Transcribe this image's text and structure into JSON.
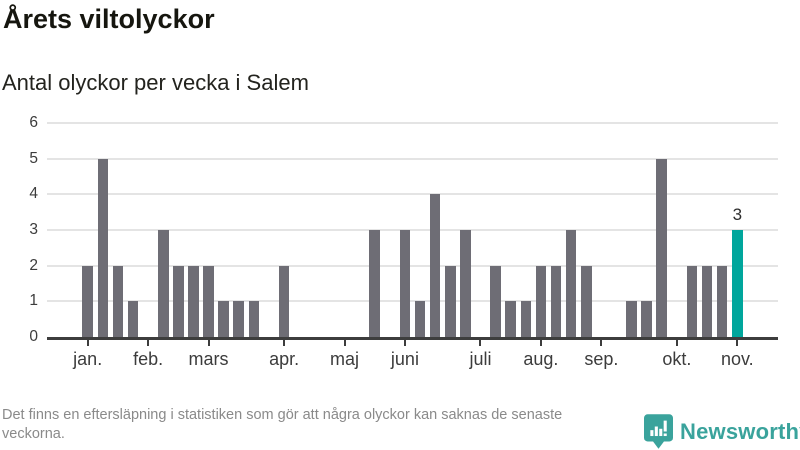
{
  "header": {
    "title": "Årets viltolyckor",
    "subtitle": "Antal olyckor per vecka i Salem"
  },
  "chart_data": {
    "type": "bar",
    "title": "Årets viltolyckor",
    "subtitle": "Antal olyckor per vecka i Salem",
    "x_unit": "vecka",
    "values": [
      2,
      5,
      2,
      1,
      0,
      3,
      2,
      2,
      2,
      1,
      1,
      1,
      0,
      2,
      0,
      0,
      0,
      0,
      0,
      3,
      0,
      3,
      1,
      4,
      2,
      3,
      0,
      2,
      1,
      1,
      2,
      2,
      3,
      2,
      0,
      0,
      1,
      1,
      5,
      0,
      2,
      2,
      2,
      3
    ],
    "highlight_index": 43,
    "highlight_value_label": "3",
    "ylim": [
      0,
      6
    ],
    "yticks": [
      0,
      1,
      2,
      3,
      4,
      5,
      6
    ],
    "month_ticks": [
      {
        "week": 0,
        "label": "jan."
      },
      {
        "week": 4,
        "label": "feb."
      },
      {
        "week": 8,
        "label": "mars"
      },
      {
        "week": 13,
        "label": "apr."
      },
      {
        "week": 17,
        "label": "maj"
      },
      {
        "week": 21,
        "label": "juni"
      },
      {
        "week": 26,
        "label": "juli"
      },
      {
        "week": 30,
        "label": "aug."
      },
      {
        "week": 34,
        "label": "sep."
      },
      {
        "week": 39,
        "label": "okt."
      },
      {
        "week": 43,
        "label": "nov."
      }
    ],
    "grid": true,
    "legend_position": "none",
    "colors": {
      "bar": "#6e6d75",
      "highlight": "#00a69c",
      "grid": "#e4e4e4",
      "axis": "#3d3d3d",
      "tick_label": "#3c3c3c"
    }
  },
  "footer": {
    "note": "Det finns en eftersläpning i statistiken som gör att några olyckor kan saknas de senaste veckorna.",
    "brand": "Newsworthy",
    "brand_color": "#3aa39c",
    "logo_icon": "newsworthy-chart-bubble"
  }
}
